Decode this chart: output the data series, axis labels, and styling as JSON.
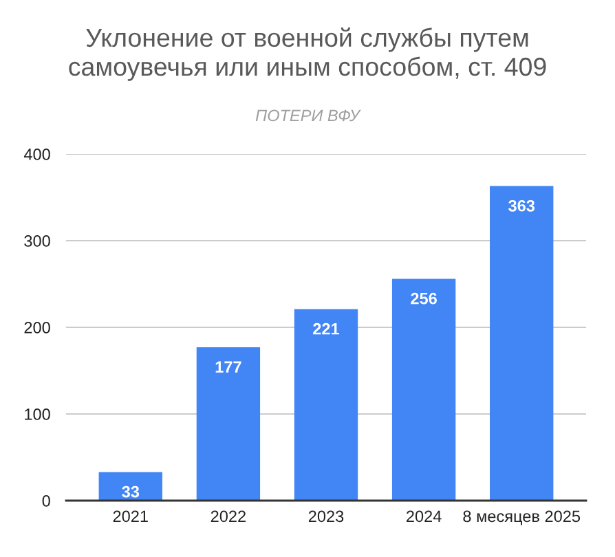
{
  "chart_data": {
    "type": "bar",
    "title": "Уклонение от военной службы путем самоувечья или иным способом, ст. 409",
    "subtitle": "ПОТЕРИ ВФУ",
    "categories": [
      "2021",
      "2022",
      "2023",
      "2024",
      "8 месяцев 2025"
    ],
    "values": [
      33,
      177,
      221,
      256,
      363
    ],
    "color": "#4285f4",
    "ylim": [
      0,
      400
    ],
    "yticks": [
      0,
      100,
      200,
      300,
      400
    ],
    "grid": "y",
    "data_labels": true
  }
}
